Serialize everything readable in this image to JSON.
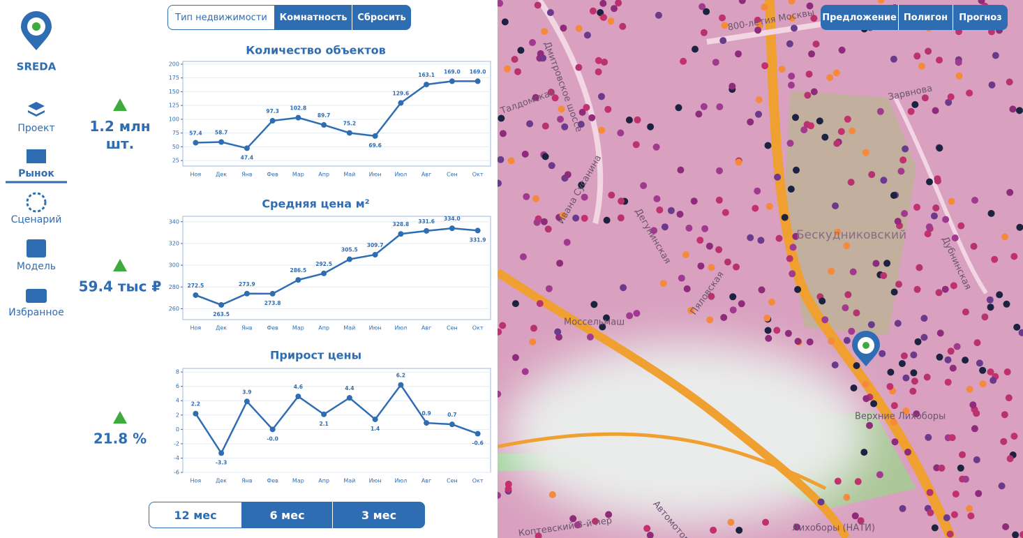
{
  "logo": "SREDA",
  "nav": [
    "Проект",
    "Рынок",
    "Сценарий",
    "Модель",
    "Избранное"
  ],
  "filters": [
    "Тип недвижимости",
    "Комнатность",
    "Сбросить"
  ],
  "kpis": [
    "1.2 млн\nшт.",
    "59.4 тыс ₽",
    "21.8 %"
  ],
  "periods": [
    "12 мес",
    "6 мес",
    "3 мес"
  ],
  "map": {
    "buttons": [
      "Предложение",
      "Полигон",
      "Прогноз"
    ],
    "labels": [
      "800-летия Москвы",
      "Бескудниковский",
      "Моссельмаш",
      "Верхние Лихоборы",
      "Лихоборы (НАТИ)",
      "Ивана Сусанина",
      "Дегунинская",
      "Дубнинская",
      "Зарвнова",
      "Пяловская",
      "Талдомская",
      "Дмитровское шоссе",
      "Дубнинская",
      "Автомоторная",
      "Коптевский 3-й пер"
    ]
  },
  "chart_data": [
    {
      "type": "line",
      "title": "Количество объектов",
      "color": "#2f6db3",
      "grid": true,
      "categories": [
        "Ноя",
        "Дек",
        "Янв",
        "Фев",
        "Мар",
        "Апр",
        "Май",
        "Июн",
        "Июл",
        "Авг",
        "Сен",
        "Окт"
      ],
      "values": [
        57.4,
        58.7,
        47.4,
        97.3,
        102.8,
        89.7,
        75.2,
        69.6,
        129.6,
        163.1,
        169.0,
        169.0
      ],
      "value_labels": [
        "57.4",
        "58.7",
        "47.4",
        "97.3",
        "102.8",
        "89.7",
        "75.2",
        "69.6",
        "129.6",
        "163.1",
        "169.0",
        "169.0"
      ],
      "ylim": [
        15,
        205
      ],
      "yticks": [
        25,
        50,
        75,
        100,
        125,
        150,
        175,
        200
      ]
    },
    {
      "type": "line",
      "title": "Средняя цена м²",
      "color": "#2f6db3",
      "grid": true,
      "categories": [
        "Ноя",
        "Дек",
        "Янв",
        "Фев",
        "Мар",
        "Апр",
        "Май",
        "Июн",
        "Июл",
        "Авг",
        "Сен",
        "Окт"
      ],
      "values": [
        272.5,
        263.5,
        273.9,
        273.8,
        286.5,
        292.5,
        305.5,
        309.7,
        328.8,
        331.6,
        334.0,
        331.9
      ],
      "value_labels": [
        "272.5",
        "263.5",
        "273.9",
        "273.8",
        "286.5",
        "292.5",
        "305.5",
        "309.7",
        "328.8",
        "331.6",
        "334.0",
        "331.9"
      ],
      "ylim": [
        250,
        345
      ],
      "yticks": [
        260,
        280,
        300,
        320,
        340
      ]
    },
    {
      "type": "line",
      "title": "Прирост цены",
      "color": "#2f6db3",
      "grid": true,
      "categories": [
        "Ноя",
        "Дек",
        "Янв",
        "Фев",
        "Мар",
        "Апр",
        "Май",
        "Июн",
        "Июл",
        "Авг",
        "Сен",
        "Окт"
      ],
      "values": [
        2.2,
        -3.3,
        3.9,
        0,
        4.6,
        2.1,
        4.4,
        1.4,
        6.2,
        0.9,
        0.7,
        -0.6
      ],
      "value_labels": [
        "2.2",
        "-3.3",
        "3.9",
        "-0.0",
        "4.6",
        "2.1",
        "4.4",
        "1.4",
        "6.2",
        "0.9",
        "0.7",
        "-0.6"
      ],
      "ylim": [
        -6,
        8.5
      ],
      "yticks": [
        -6,
        -4,
        -2,
        0,
        2,
        4,
        6,
        8
      ]
    }
  ]
}
